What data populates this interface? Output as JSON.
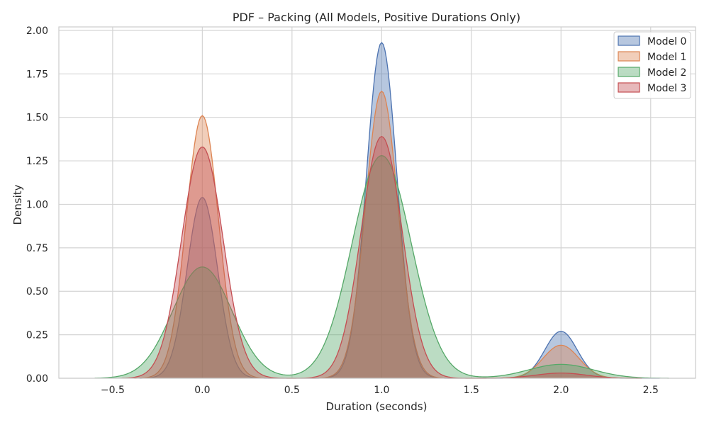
{
  "chart_data": {
    "type": "area",
    "title": "PDF – Packing (All Models, Positive Durations Only)",
    "xlabel": "Duration (seconds)",
    "ylabel": "Density",
    "xlim": [
      -0.8,
      2.75
    ],
    "ylim": [
      0,
      2.02
    ],
    "xticks": [
      -0.5,
      0.0,
      0.5,
      1.0,
      1.5,
      2.0,
      2.5
    ],
    "xtick_labels": [
      "−0.5",
      "0.0",
      "0.5",
      "1.0",
      "1.5",
      "2.0",
      "2.5"
    ],
    "yticks": [
      0,
      0.25,
      0.5,
      0.75,
      1.0,
      1.25,
      1.5,
      1.75,
      2.0
    ],
    "ytick_labels": [
      "0.00",
      "0.25",
      "0.50",
      "0.75",
      "1.00",
      "1.25",
      "1.50",
      "1.75",
      "2.00"
    ],
    "grid": true,
    "legend_position": "top-right",
    "series": [
      {
        "name": "Model 0",
        "color": "#4c72b0",
        "x_range": [
          -0.35,
          2.55
        ],
        "peaks": [
          {
            "x": 0.0,
            "density": 1.04
          },
          {
            "x": 1.0,
            "density": 1.93
          },
          {
            "x": 2.0,
            "density": 0.27
          }
        ]
      },
      {
        "name": "Model 1",
        "color": "#dd8452",
        "x_range": [
          -0.38,
          2.45
        ],
        "peaks": [
          {
            "x": 0.0,
            "density": 1.51
          },
          {
            "x": 1.0,
            "density": 1.65
          },
          {
            "x": 2.0,
            "density": 0.19
          }
        ]
      },
      {
        "name": "Model 2",
        "color": "#55a868",
        "x_range": [
          -0.6,
          2.6
        ],
        "peaks": [
          {
            "x": 0.0,
            "density": 0.64
          },
          {
            "x": 1.0,
            "density": 1.28
          },
          {
            "x": 2.0,
            "density": 0.08
          }
        ]
      },
      {
        "name": "Model 3",
        "color": "#c44e52",
        "x_range": [
          -0.45,
          2.45
        ],
        "peaks": [
          {
            "x": 0.0,
            "density": 1.33
          },
          {
            "x": 1.0,
            "density": 1.39
          },
          {
            "x": 2.0,
            "density": 0.03
          }
        ]
      }
    ]
  }
}
